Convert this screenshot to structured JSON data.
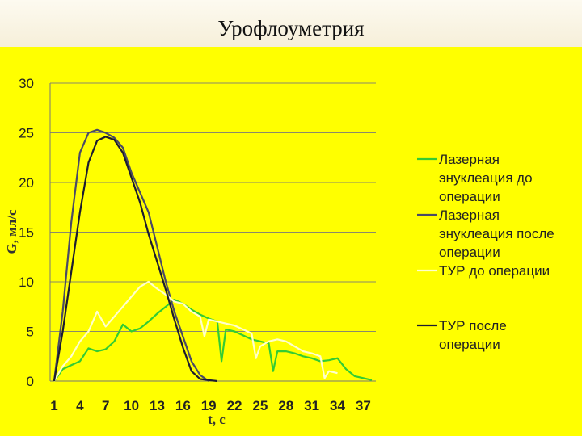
{
  "slide": {
    "title": "Урофлоуметрия"
  },
  "chart_data": {
    "type": "line",
    "xlabel": "t, c",
    "ylabel": "G, мл/с",
    "xlim": [
      1,
      38
    ],
    "ylim": [
      0,
      30
    ],
    "yticks": [
      0,
      5,
      10,
      15,
      20,
      25,
      30
    ],
    "xticks": [
      1,
      4,
      7,
      10,
      13,
      16,
      19,
      22,
      25,
      28,
      31,
      34,
      37
    ],
    "grid": "horizontal",
    "legend_position": "right",
    "series": [
      {
        "name": "Лазерная энуклеация до операции",
        "legend_lines": [
          "Лазерная",
          "энуклеация до",
          "операции"
        ],
        "color": "#33cc33",
        "points": [
          [
            1,
            0
          ],
          [
            2,
            1.2
          ],
          [
            3,
            1.6
          ],
          [
            4,
            2
          ],
          [
            5,
            3.3
          ],
          [
            6,
            3
          ],
          [
            7,
            3.2
          ],
          [
            8,
            4
          ],
          [
            9,
            5.7
          ],
          [
            10,
            5
          ],
          [
            11,
            5.3
          ],
          [
            12,
            6
          ],
          [
            13,
            6.8
          ],
          [
            14,
            7.5
          ],
          [
            15,
            8.2
          ],
          [
            16,
            7.8
          ],
          [
            17,
            7.2
          ],
          [
            18,
            6.7
          ],
          [
            19,
            6.3
          ],
          [
            20,
            6
          ],
          [
            20.5,
            2
          ],
          [
            21,
            5.2
          ],
          [
            22,
            5
          ],
          [
            23,
            4.6
          ],
          [
            24,
            4.2
          ],
          [
            25,
            4
          ],
          [
            26,
            3.8
          ],
          [
            26.5,
            1
          ],
          [
            27,
            3
          ],
          [
            28,
            3
          ],
          [
            29,
            2.8
          ],
          [
            30,
            2.5
          ],
          [
            31,
            2.3
          ],
          [
            32,
            2
          ],
          [
            33,
            2.1
          ],
          [
            34,
            2.3
          ],
          [
            35,
            1.2
          ],
          [
            36,
            0.5
          ],
          [
            37,
            0.3
          ],
          [
            38,
            0.1
          ]
        ]
      },
      {
        "name": "Лазерная энуклеация после операции",
        "legend_lines": [
          "Лазерная",
          "энуклеация после",
          "операции"
        ],
        "color": "#4a4a66",
        "points": [
          [
            1,
            0
          ],
          [
            2,
            7
          ],
          [
            3,
            16
          ],
          [
            4,
            23
          ],
          [
            5,
            25
          ],
          [
            6,
            25.3
          ],
          [
            7,
            25
          ],
          [
            8,
            24.5
          ],
          [
            9,
            23.5
          ],
          [
            10,
            21
          ],
          [
            11,
            19
          ],
          [
            12,
            17
          ],
          [
            13,
            13.5
          ],
          [
            14,
            10
          ],
          [
            15,
            7
          ],
          [
            16,
            4.5
          ],
          [
            17,
            2
          ],
          [
            18,
            0.6
          ],
          [
            19,
            0
          ]
        ]
      },
      {
        "name": "ТУР до операции",
        "legend_lines": [
          "ТУР до операции"
        ],
        "color": "#ffffcc",
        "points": [
          [
            1,
            0
          ],
          [
            2,
            1.5
          ],
          [
            3,
            2.5
          ],
          [
            4,
            4
          ],
          [
            5,
            5
          ],
          [
            6,
            7
          ],
          [
            7,
            5.5
          ],
          [
            8,
            6.5
          ],
          [
            9,
            7.5
          ],
          [
            10,
            8.5
          ],
          [
            11,
            9.5
          ],
          [
            12,
            10
          ],
          [
            13,
            9.3
          ],
          [
            14,
            8.7
          ],
          [
            15,
            8
          ],
          [
            16,
            7.8
          ],
          [
            17,
            7
          ],
          [
            18,
            6.5
          ],
          [
            18.5,
            4.5
          ],
          [
            19,
            6.2
          ],
          [
            20,
            6
          ],
          [
            21,
            5.8
          ],
          [
            22,
            5.6
          ],
          [
            23,
            5.2
          ],
          [
            24,
            4.8
          ],
          [
            24.5,
            2.3
          ],
          [
            25,
            3.5
          ],
          [
            26,
            4
          ],
          [
            27,
            4.2
          ],
          [
            28,
            4
          ],
          [
            29,
            3.5
          ],
          [
            30,
            3
          ],
          [
            31,
            2.8
          ],
          [
            32,
            2.5
          ],
          [
            32.5,
            0.3
          ],
          [
            33,
            1
          ],
          [
            34,
            0.8
          ]
        ]
      },
      {
        "name": "ТУР после операции",
        "legend_lines": [
          "ТУР после",
          "операции"
        ],
        "color": "#1c1c30",
        "points": [
          [
            1,
            0
          ],
          [
            2,
            5
          ],
          [
            3,
            11
          ],
          [
            4,
            17
          ],
          [
            5,
            22
          ],
          [
            6,
            24.2
          ],
          [
            7,
            24.6
          ],
          [
            8,
            24.3
          ],
          [
            9,
            23
          ],
          [
            10,
            20.5
          ],
          [
            11,
            18
          ],
          [
            12,
            14.8
          ],
          [
            13,
            12
          ],
          [
            14,
            9.2
          ],
          [
            15,
            6.2
          ],
          [
            16,
            3.4
          ],
          [
            17,
            1
          ],
          [
            18,
            0.2
          ],
          [
            19,
            0.1
          ],
          [
            20,
            0
          ]
        ]
      }
    ]
  }
}
